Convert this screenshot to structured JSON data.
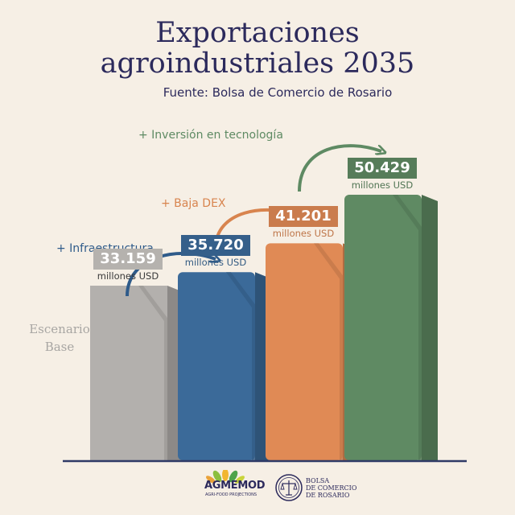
{
  "header": {
    "title_line1": "Exportaciones",
    "title_line2": "agroindustriales 2035",
    "subtitle": "Fuente: Bolsa de Comercio de Rosario"
  },
  "chart_data": {
    "type": "bar",
    "title": "Exportaciones agroindustriales 2035",
    "subtitle": "Fuente: Bolsa de Comercio de Rosario",
    "categories": [
      "Escenario Base",
      "+ Infraestructura",
      "+ Baja DEX",
      "+ Inversión en tecnología"
    ],
    "values": [
      33159,
      35720,
      41201,
      50429
    ],
    "value_labels": [
      "33.159",
      "35.720",
      "41.201",
      "50.429"
    ],
    "unit": "millones USD",
    "colors": [
      "#b3b0ad",
      "#3b6a99",
      "#e08a55",
      "#5f8a63"
    ],
    "xlabel": "",
    "ylabel": "",
    "grid": false,
    "legend": "none"
  },
  "steps": [
    {
      "label": "+ Infraestructura",
      "color": "#2f5b8a"
    },
    {
      "label": "+ Baja DEX",
      "color": "#d8844e"
    },
    {
      "label": "+ Inversión en tecnología",
      "color": "#5e8a63"
    }
  ],
  "base_label": {
    "line1": "Escenario",
    "line2": "Base"
  },
  "logos": {
    "agmemod_name": "AGMEMOD",
    "agmemod_sub": "AGRI-FOOD PROJECTIONS",
    "bcr_text": "BOLSA\nDE COMERCIO\nDE ROSARIO",
    "agmemod_icon": "leaf-burst-icon",
    "bcr_icon": "scales-emblem-icon"
  }
}
